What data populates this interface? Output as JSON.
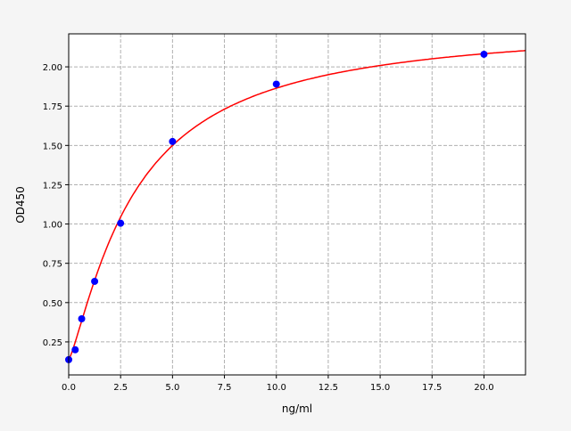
{
  "chart_data": {
    "type": "scatter",
    "title": "",
    "xlabel": "ng/ml",
    "ylabel": "OD450",
    "xlim": [
      0,
      22
    ],
    "ylim": [
      0.04,
      2.21
    ],
    "grid": true,
    "x_ticks": [
      "0.0",
      "2.5",
      "5.0",
      "7.5",
      "10.0",
      "12.5",
      "15.0",
      "17.5",
      "20.0"
    ],
    "x_tick_values": [
      0,
      2.5,
      5,
      7.5,
      10,
      12.5,
      15,
      17.5,
      20
    ],
    "y_ticks": [
      "0.25",
      "0.50",
      "0.75",
      "1.00",
      "1.25",
      "1.50",
      "1.75",
      "2.00"
    ],
    "y_tick_values": [
      0.25,
      0.5,
      0.75,
      1.0,
      1.25,
      1.5,
      1.75,
      2.0
    ],
    "points": {
      "x": [
        0,
        0.3125,
        0.625,
        1.25,
        2.5,
        5,
        10,
        20
      ],
      "y": [
        0.137,
        0.2,
        0.397,
        0.635,
        1.005,
        1.525,
        1.89,
        2.08
      ],
      "color": "#0000ff"
    },
    "fit_curve": {
      "model": "4PL",
      "a": 0.137,
      "b": 1.25,
      "c": 3.2,
      "d": 2.28,
      "color": "#ff0000"
    }
  }
}
